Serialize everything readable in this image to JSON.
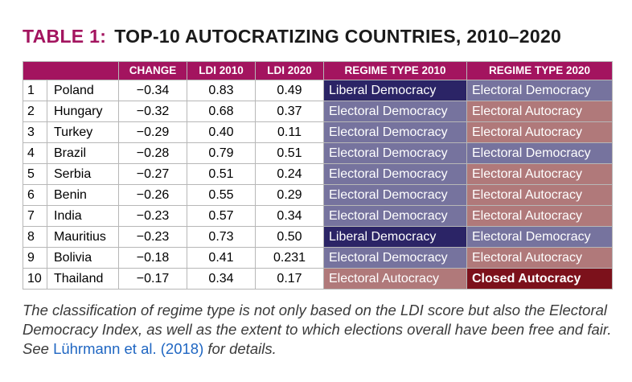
{
  "title": {
    "label": "TABLE 1:",
    "text": "TOP-10 AUTOCRATIZING COUNTRIES, 2010–2020"
  },
  "headers": [
    "",
    "CHANGE",
    "LDI 2010",
    "LDI 2020",
    "REGIME TYPE 2010",
    "REGIME TYPE 2020"
  ],
  "rows": [
    {
      "rank": "1",
      "country": "Poland",
      "change": "−0.34",
      "ldi2010": "0.83",
      "ldi2020": "0.49",
      "regime2010": "Liberal Democracy",
      "regime2020": "Electoral Democracy"
    },
    {
      "rank": "2",
      "country": "Hungary",
      "change": "−0.32",
      "ldi2010": "0.68",
      "ldi2020": "0.37",
      "regime2010": "Electoral Democracy",
      "regime2020": "Electoral Autocracy"
    },
    {
      "rank": "3",
      "country": "Turkey",
      "change": "−0.29",
      "ldi2010": "0.40",
      "ldi2020": "0.11",
      "regime2010": "Electoral Democracy",
      "regime2020": "Electoral Autocracy"
    },
    {
      "rank": "4",
      "country": "Brazil",
      "change": "−0.28",
      "ldi2010": "0.79",
      "ldi2020": "0.51",
      "regime2010": "Electoral Democracy",
      "regime2020": "Electoral Democracy"
    },
    {
      "rank": "5",
      "country": "Serbia",
      "change": "−0.27",
      "ldi2010": "0.51",
      "ldi2020": "0.24",
      "regime2010": "Electoral Democracy",
      "regime2020": "Electoral Autocracy"
    },
    {
      "rank": "6",
      "country": "Benin",
      "change": "−0.26",
      "ldi2010": "0.55",
      "ldi2020": "0.29",
      "regime2010": "Electoral Democracy",
      "regime2020": "Electoral Autocracy"
    },
    {
      "rank": "7",
      "country": "India",
      "change": "−0.23",
      "ldi2010": "0.57",
      "ldi2020": "0.34",
      "regime2010": "Electoral Democracy",
      "regime2020": "Electoral Autocracy"
    },
    {
      "rank": "8",
      "country": "Mauritius",
      "change": "−0.23",
      "ldi2010": "0.73",
      "ldi2020": "0.50",
      "regime2010": "Liberal Democracy",
      "regime2020": "Electoral Democracy"
    },
    {
      "rank": "9",
      "country": "Bolivia",
      "change": "−0.18",
      "ldi2010": "0.41",
      "ldi2020": "0.231",
      "regime2010": "Electoral Democracy",
      "regime2020": "Electoral Autocracy"
    },
    {
      "rank": "10",
      "country": "Thailand",
      "change": "−0.17",
      "ldi2010": "0.34",
      "ldi2020": "0.17",
      "regime2010": "Electoral Autocracy",
      "regime2020": "Closed Autocracy"
    }
  ],
  "regime_colors": {
    "Liberal Democracy": "#2b2466",
    "Electoral Democracy": "#76739e",
    "Electoral Autocracy": "#b0797a",
    "Closed Autocracy": "#7c111b"
  },
  "caption": {
    "text": "The classification of regime type is not only based on the LDI score but also the Electoral Democracy Index, as well as the extent to which elections overall have been free and fair. See ",
    "ref": "Lührmann et al. (2018)",
    "end": " for details."
  }
}
